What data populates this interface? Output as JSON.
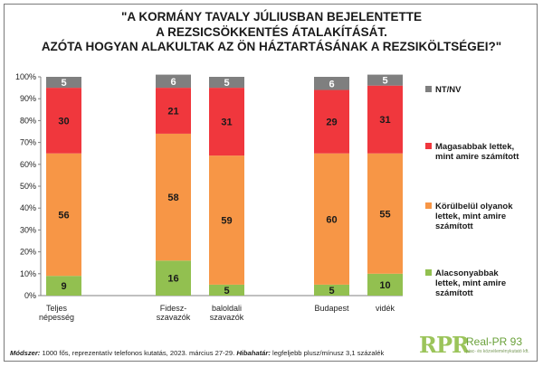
{
  "title_lines": [
    "\"A KORMÁNY TAVALY JÚLIUSBAN BEJELENTETTE",
    "A REZSICSÖKKENTÉS ÁTALAKÍTÁSÁT.",
    "AZÓTA HOGYAN ALAKULTAK AZ ÖN HÁZTARTÁSÁNAK A REZSIKÖLTSÉGEI?\""
  ],
  "footer": {
    "method_label": "Módszer:",
    "method_text": " 1000 fős, reprezentatív telefonos kutatás, 2023. március 27-29. ",
    "error_label": "Hibahatár:",
    "error_text": " legfeljebb plusz/mínusz 3,1 százalék"
  },
  "logo": {
    "mark": "RPR",
    "name": "Real-PR 93",
    "subtitle": "piac- és közvéleménykutató kft."
  },
  "chart_data": {
    "type": "bar",
    "stacked": true,
    "categories": [
      [
        "Teljes",
        "népesség"
      ],
      [
        "Fidesz-",
        "szavazók"
      ],
      [
        "baloldali",
        "szavazók"
      ],
      [
        "Budapest"
      ],
      [
        "vidék"
      ]
    ],
    "series": [
      {
        "name": "Alacsonyabbak lettek, mint amire számított",
        "color": "#92c050",
        "values": [
          9,
          16,
          5,
          5,
          10
        ]
      },
      {
        "name": "Körülbelül olyanok lettek, mint amire számított",
        "color": "#f79646",
        "values": [
          56,
          58,
          59,
          60,
          55
        ]
      },
      {
        "name": "Magasabbak lettek, mint amire számított",
        "color": "#f0373d",
        "values": [
          30,
          21,
          31,
          29,
          31
        ]
      },
      {
        "name": "NT/NV",
        "color": "#7f7f7f",
        "values": [
          5,
          6,
          5,
          6,
          5
        ]
      }
    ],
    "legend": [
      {
        "label": "NT/NV",
        "color": "#7f7f7f"
      },
      {
        "label": "Magasabbak lettek, mint amire számított",
        "color": "#f0373d"
      },
      {
        "label": "Körülbelül olyanok lettek, mint amire számított",
        "color": "#f79646"
      },
      {
        "label": "Alacsonyabbak lettek, mint amire számított",
        "color": "#92c050"
      }
    ],
    "legend_lines": [
      [
        "NT/NV"
      ],
      [
        "Magasabbak lettek,",
        "mint amire számított"
      ],
      [
        "Körülbelül olyanok",
        "lettek, mint amire",
        "számított"
      ],
      [
        "Alacsonyabbak",
        "lettek, mint amire",
        "számított"
      ]
    ],
    "y_ticks": [
      "0%",
      "10%",
      "20%",
      "30%",
      "40%",
      "50%",
      "60%",
      "70%",
      "80%",
      "90%",
      "100%"
    ],
    "ylim": [
      0,
      100
    ],
    "legend_position": "right",
    "grid": false
  }
}
